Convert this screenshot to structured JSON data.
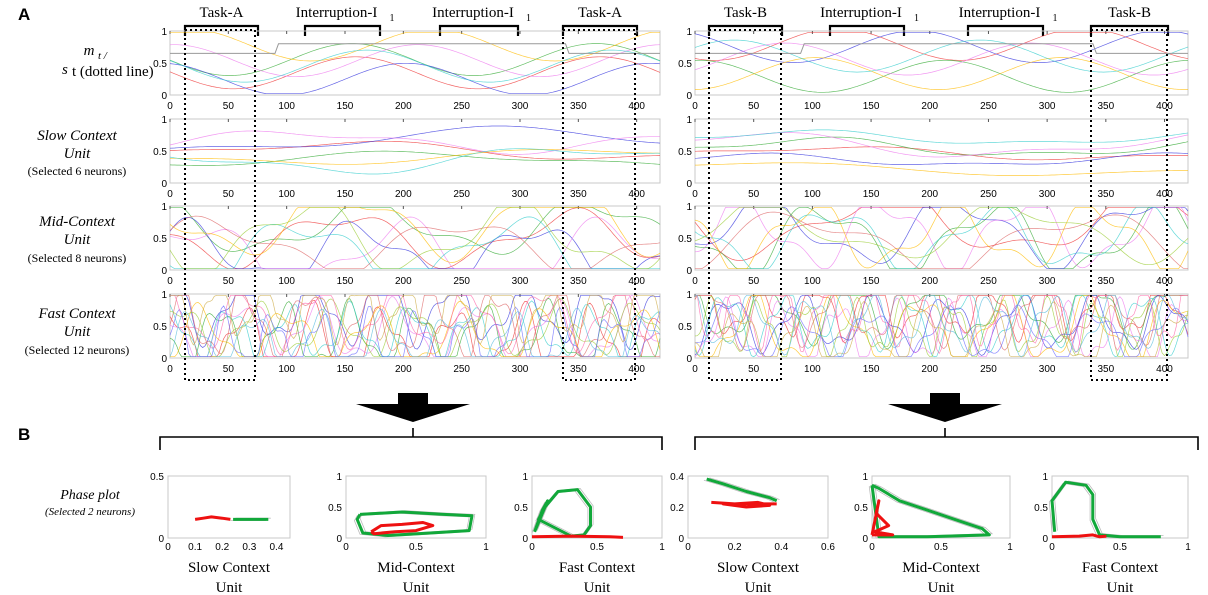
{
  "panel_a_label": "A",
  "panel_b_label": "B",
  "top_brackets": {
    "left": [
      "Task-A",
      "Interruption-I",
      "Interruption-I",
      "Task-A"
    ],
    "right": [
      "Task-B",
      "Interruption-I",
      "Interruption-I",
      "Task-B"
    ],
    "subscript": "1"
  },
  "row_labels": [
    {
      "line1": "m",
      "line1_suffix": "t /",
      "line2": "s",
      "line2_suffix": "t (dotted line)",
      "italic": false
    },
    {
      "line1": "Slow Context",
      "line2": "Unit",
      "line3": "(Selected 6 neurons)",
      "italic": true
    },
    {
      "line1": "Mid-Context",
      "line2": "Unit",
      "line3": "(Selected 8 neurons)",
      "italic": true
    },
    {
      "line1": "Fast Context",
      "line2": "Unit",
      "line3": "(Selected 12 neurons)",
      "italic": true
    }
  ],
  "timeseries_axes": {
    "x_ticks": [
      "0",
      "50",
      "100",
      "150",
      "200",
      "250",
      "300",
      "350",
      "400"
    ],
    "y_ticks": [
      "0",
      "0.5",
      "1"
    ]
  },
  "phase_label": {
    "line1": "Phase plot",
    "line2": "(Selected 2 neurons)"
  },
  "chart_data": [
    {
      "type": "line",
      "title": "m_t / s_t (dotted line) - Task-A sequence",
      "xlim": [
        0,
        420
      ],
      "ylim": [
        0,
        1
      ],
      "x_ticks": [
        0,
        50,
        100,
        150,
        200,
        250,
        300,
        350,
        400
      ],
      "y_ticks": [
        0,
        0.5,
        1
      ],
      "annotations": [
        "Task-A",
        "Interruption-I1",
        "Interruption-I1",
        "Task-A"
      ]
    },
    {
      "type": "line",
      "title": "m_t / s_t (dotted line) - Task-B sequence",
      "xlim": [
        0,
        420
      ],
      "ylim": [
        0,
        1
      ],
      "x_ticks": [
        0,
        50,
        100,
        150,
        200,
        250,
        300,
        350,
        400
      ],
      "y_ticks": [
        0,
        0.5,
        1
      ],
      "annotations": [
        "Task-B",
        "Interruption-I1",
        "Interruption-I1",
        "Task-B"
      ]
    },
    {
      "type": "line",
      "title": "Slow Context Unit (6 neurons) - Task-A",
      "xlim": [
        0,
        420
      ],
      "ylim": [
        0,
        1
      ]
    },
    {
      "type": "line",
      "title": "Slow Context Unit (6 neurons) - Task-B",
      "xlim": [
        0,
        420
      ],
      "ylim": [
        0,
        1
      ]
    },
    {
      "type": "line",
      "title": "Mid-Context Unit (8 neurons) - Task-A",
      "xlim": [
        0,
        420
      ],
      "ylim": [
        0,
        1
      ]
    },
    {
      "type": "line",
      "title": "Mid-Context Unit (8 neurons) - Task-B",
      "xlim": [
        0,
        420
      ],
      "ylim": [
        0,
        1
      ]
    },
    {
      "type": "line",
      "title": "Fast Context Unit (12 neurons) - Task-A",
      "xlim": [
        0,
        420
      ],
      "ylim": [
        0,
        1
      ]
    },
    {
      "type": "line",
      "title": "Fast Context Unit (12 neurons) - Task-B",
      "xlim": [
        0,
        420
      ],
      "ylim": [
        0,
        1
      ]
    },
    {
      "type": "line",
      "title": "Phase plot Slow Context Unit (Task-A)",
      "xlabel": "Slow Context Unit",
      "xlim": [
        0,
        0.45
      ],
      "ylim": [
        0,
        0.5
      ],
      "x_ticks": [
        "0",
        "0.1",
        "0.2",
        "0.3",
        "0.4"
      ],
      "y_ticks": [
        "0",
        "0.5"
      ],
      "red": [
        [
          0.1,
          0.15
        ],
        [
          0.13,
          0.16
        ],
        [
          0.16,
          0.17
        ],
        [
          0.2,
          0.16
        ],
        [
          0.23,
          0.15
        ]
      ],
      "green": [
        [
          0.24,
          0.15
        ],
        [
          0.37,
          0.15
        ]
      ]
    },
    {
      "type": "line",
      "title": "Phase plot Mid-Context Unit (Task-A)",
      "xlabel": "Mid-Context Unit",
      "xlim": [
        0,
        1
      ],
      "ylim": [
        0,
        1
      ],
      "x_ticks": [
        "0",
        "0.5",
        "1"
      ],
      "y_ticks": [
        "0",
        "0.5",
        "1"
      ],
      "red": [
        [
          0.18,
          0.1
        ],
        [
          0.25,
          0.2
        ],
        [
          0.4,
          0.22
        ],
        [
          0.55,
          0.25
        ],
        [
          0.62,
          0.2
        ],
        [
          0.5,
          0.12
        ],
        [
          0.35,
          0.1
        ],
        [
          0.2,
          0.07
        ],
        [
          0.18,
          0.1
        ]
      ],
      "green": [
        [
          0.1,
          0.38
        ],
        [
          0.4,
          0.42
        ],
        [
          0.7,
          0.38
        ],
        [
          0.9,
          0.36
        ],
        [
          0.88,
          0.12
        ],
        [
          0.6,
          0.08
        ],
        [
          0.3,
          0.04
        ],
        [
          0.12,
          0.08
        ],
        [
          0.08,
          0.3
        ],
        [
          0.1,
          0.38
        ]
      ]
    },
    {
      "type": "line",
      "title": "Phase plot Fast Context Unit (Task-A)",
      "xlabel": "Fast Context Unit",
      "xlim": [
        0,
        1
      ],
      "ylim": [
        0,
        1
      ],
      "x_ticks": [
        "0",
        "0.5",
        "1"
      ],
      "y_ticks": [
        "0",
        "0.5",
        "1"
      ],
      "red": [
        [
          0.0,
          0.02
        ],
        [
          0.3,
          0.03
        ],
        [
          0.6,
          0.02
        ],
        [
          0.7,
          0.01
        ]
      ],
      "green": [
        [
          0.02,
          0.1
        ],
        [
          0.1,
          0.5
        ],
        [
          0.2,
          0.75
        ],
        [
          0.35,
          0.78
        ],
        [
          0.45,
          0.5
        ],
        [
          0.45,
          0.2
        ],
        [
          0.4,
          0.05
        ],
        [
          0.3,
          0.03
        ],
        [
          0.05,
          0.3
        ],
        [
          0.12,
          0.6
        ],
        [
          0.08,
          0.45
        ],
        [
          0.02,
          0.1
        ]
      ]
    },
    {
      "type": "line",
      "title": "Phase plot Slow Context Unit (Task-B)",
      "xlabel": "Slow Context Unit",
      "xlim": [
        0,
        0.6
      ],
      "ylim": [
        0,
        0.4
      ],
      "x_ticks": [
        "0",
        "0.2",
        "0.4",
        "0.6"
      ],
      "y_ticks": [
        "0",
        "0.2",
        "0.4"
      ],
      "red": [
        [
          0.1,
          0.23
        ],
        [
          0.2,
          0.22
        ],
        [
          0.3,
          0.23
        ],
        [
          0.35,
          0.21
        ],
        [
          0.25,
          0.2
        ],
        [
          0.15,
          0.22
        ],
        [
          0.38,
          0.22
        ]
      ],
      "green": [
        [
          0.08,
          0.38
        ],
        [
          0.15,
          0.35
        ],
        [
          0.25,
          0.3
        ],
        [
          0.35,
          0.26
        ],
        [
          0.38,
          0.24
        ]
      ]
    },
    {
      "type": "line",
      "title": "Phase plot Mid-Context Unit (Task-B)",
      "xlabel": "Mid-Context Unit",
      "xlim": [
        0,
        1
      ],
      "ylim": [
        0,
        1
      ],
      "x_ticks": [
        "0",
        "0.5",
        "1"
      ],
      "y_ticks": [
        "0",
        "0.5",
        "1"
      ],
      "red": [
        [
          0.0,
          0.05
        ],
        [
          0.05,
          0.6
        ],
        [
          0.03,
          0.4
        ],
        [
          0.12,
          0.2
        ],
        [
          0.02,
          0.1
        ],
        [
          0.15,
          0.05
        ],
        [
          0.0,
          0.05
        ]
      ],
      "green": [
        [
          0.0,
          0.85
        ],
        [
          0.05,
          0.8
        ],
        [
          0.2,
          0.6
        ],
        [
          0.4,
          0.45
        ],
        [
          0.6,
          0.3
        ],
        [
          0.8,
          0.15
        ],
        [
          0.85,
          0.05
        ],
        [
          0.4,
          0.02
        ],
        [
          0.05,
          0.02
        ],
        [
          0.0,
          0.85
        ]
      ]
    },
    {
      "type": "line",
      "title": "Phase plot Fast Context Unit (Task-B)",
      "xlabel": "Fast Context Unit",
      "xlim": [
        0,
        1
      ],
      "ylim": [
        0,
        1
      ],
      "x_ticks": [
        "0",
        "0.5",
        "1"
      ],
      "y_ticks": [
        "0",
        "0.5",
        "1"
      ],
      "red": [
        [
          0.0,
          0.02
        ],
        [
          0.2,
          0.03
        ],
        [
          0.3,
          0.05
        ],
        [
          0.35,
          0.02
        ],
        [
          0.4,
          0.03
        ]
      ],
      "green": [
        [
          0.02,
          0.1
        ],
        [
          0.0,
          0.6
        ],
        [
          0.1,
          0.9
        ],
        [
          0.25,
          0.85
        ],
        [
          0.3,
          0.7
        ],
        [
          0.3,
          0.3
        ],
        [
          0.35,
          0.05
        ],
        [
          0.5,
          0.02
        ],
        [
          0.8,
          0.02
        ]
      ]
    }
  ],
  "colors": {
    "red": "#ee1111",
    "green": "#11a83a",
    "frame": "#c8c8c8"
  }
}
